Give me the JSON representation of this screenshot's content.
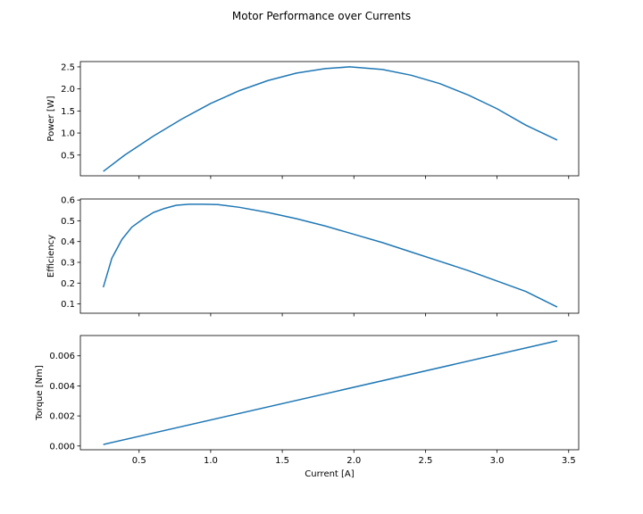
{
  "figure": {
    "title": "Motor Performance over Currents"
  },
  "chart_data": [
    {
      "type": "line",
      "ylabel": "Power [W]",
      "xlabel": "",
      "line_color": "#1f77b4",
      "xlim": [
        0.09,
        3.57
      ],
      "ylim": [
        0.03,
        2.62
      ],
      "xticks": [
        0.5,
        1.0,
        1.5,
        2.0,
        2.5,
        3.0,
        3.5
      ],
      "show_x_tick_labels": false,
      "yticks": [
        0.5,
        1.0,
        1.5,
        2.0,
        2.5
      ],
      "ytick_labels": [
        "0.5",
        "1.0",
        "1.5",
        "2.0",
        "2.5"
      ],
      "series": [
        {
          "x": [
            0.25,
            0.4,
            0.6,
            0.8,
            1.0,
            1.2,
            1.4,
            1.6,
            1.8,
            1.97,
            2.2,
            2.4,
            2.6,
            2.8,
            3.0,
            3.2,
            3.42
          ],
          "y": [
            0.13,
            0.5,
            0.93,
            1.32,
            1.67,
            1.96,
            2.19,
            2.36,
            2.46,
            2.5,
            2.44,
            2.31,
            2.12,
            1.86,
            1.55,
            1.18,
            0.84
          ]
        }
      ]
    },
    {
      "type": "line",
      "ylabel": "Efficiency",
      "xlabel": "",
      "line_color": "#1f77b4",
      "xlim": [
        0.09,
        3.57
      ],
      "ylim": [
        0.055,
        0.605
      ],
      "xticks": [
        0.5,
        1.0,
        1.5,
        2.0,
        2.5,
        3.0,
        3.5
      ],
      "show_x_tick_labels": false,
      "yticks": [
        0.1,
        0.2,
        0.3,
        0.4,
        0.5,
        0.6
      ],
      "ytick_labels": [
        "0.1",
        "0.2",
        "0.3",
        "0.4",
        "0.5",
        "0.6"
      ],
      "series": [
        {
          "x": [
            0.25,
            0.31,
            0.38,
            0.45,
            0.53,
            0.6,
            0.68,
            0.76,
            0.85,
            0.95,
            1.05,
            1.2,
            1.4,
            1.6,
            1.8,
            2.0,
            2.2,
            2.4,
            2.6,
            2.8,
            3.0,
            3.2,
            3.42
          ],
          "y": [
            0.18,
            0.32,
            0.41,
            0.47,
            0.51,
            0.54,
            0.56,
            0.575,
            0.58,
            0.58,
            0.578,
            0.565,
            0.54,
            0.51,
            0.475,
            0.435,
            0.395,
            0.35,
            0.305,
            0.26,
            0.21,
            0.16,
            0.085
          ]
        }
      ]
    },
    {
      "type": "line",
      "ylabel": "Torque [Nm]",
      "xlabel": "Current [A]",
      "line_color": "#1f77b4",
      "xlim": [
        0.09,
        3.57
      ],
      "ylim": [
        -0.00025,
        0.00735
      ],
      "xticks": [
        0.5,
        1.0,
        1.5,
        2.0,
        2.5,
        3.0,
        3.5
      ],
      "show_x_tick_labels": true,
      "xtick_labels": [
        "0.5",
        "1.0",
        "1.5",
        "2.0",
        "2.5",
        "3.0",
        "3.5"
      ],
      "yticks": [
        0.0,
        0.002,
        0.004,
        0.006
      ],
      "ytick_labels": [
        "0.000",
        "0.002",
        "0.004",
        "0.006"
      ],
      "series": [
        {
          "x": [
            0.25,
            3.42
          ],
          "y": [
            0.0001,
            0.007
          ]
        }
      ]
    }
  ]
}
